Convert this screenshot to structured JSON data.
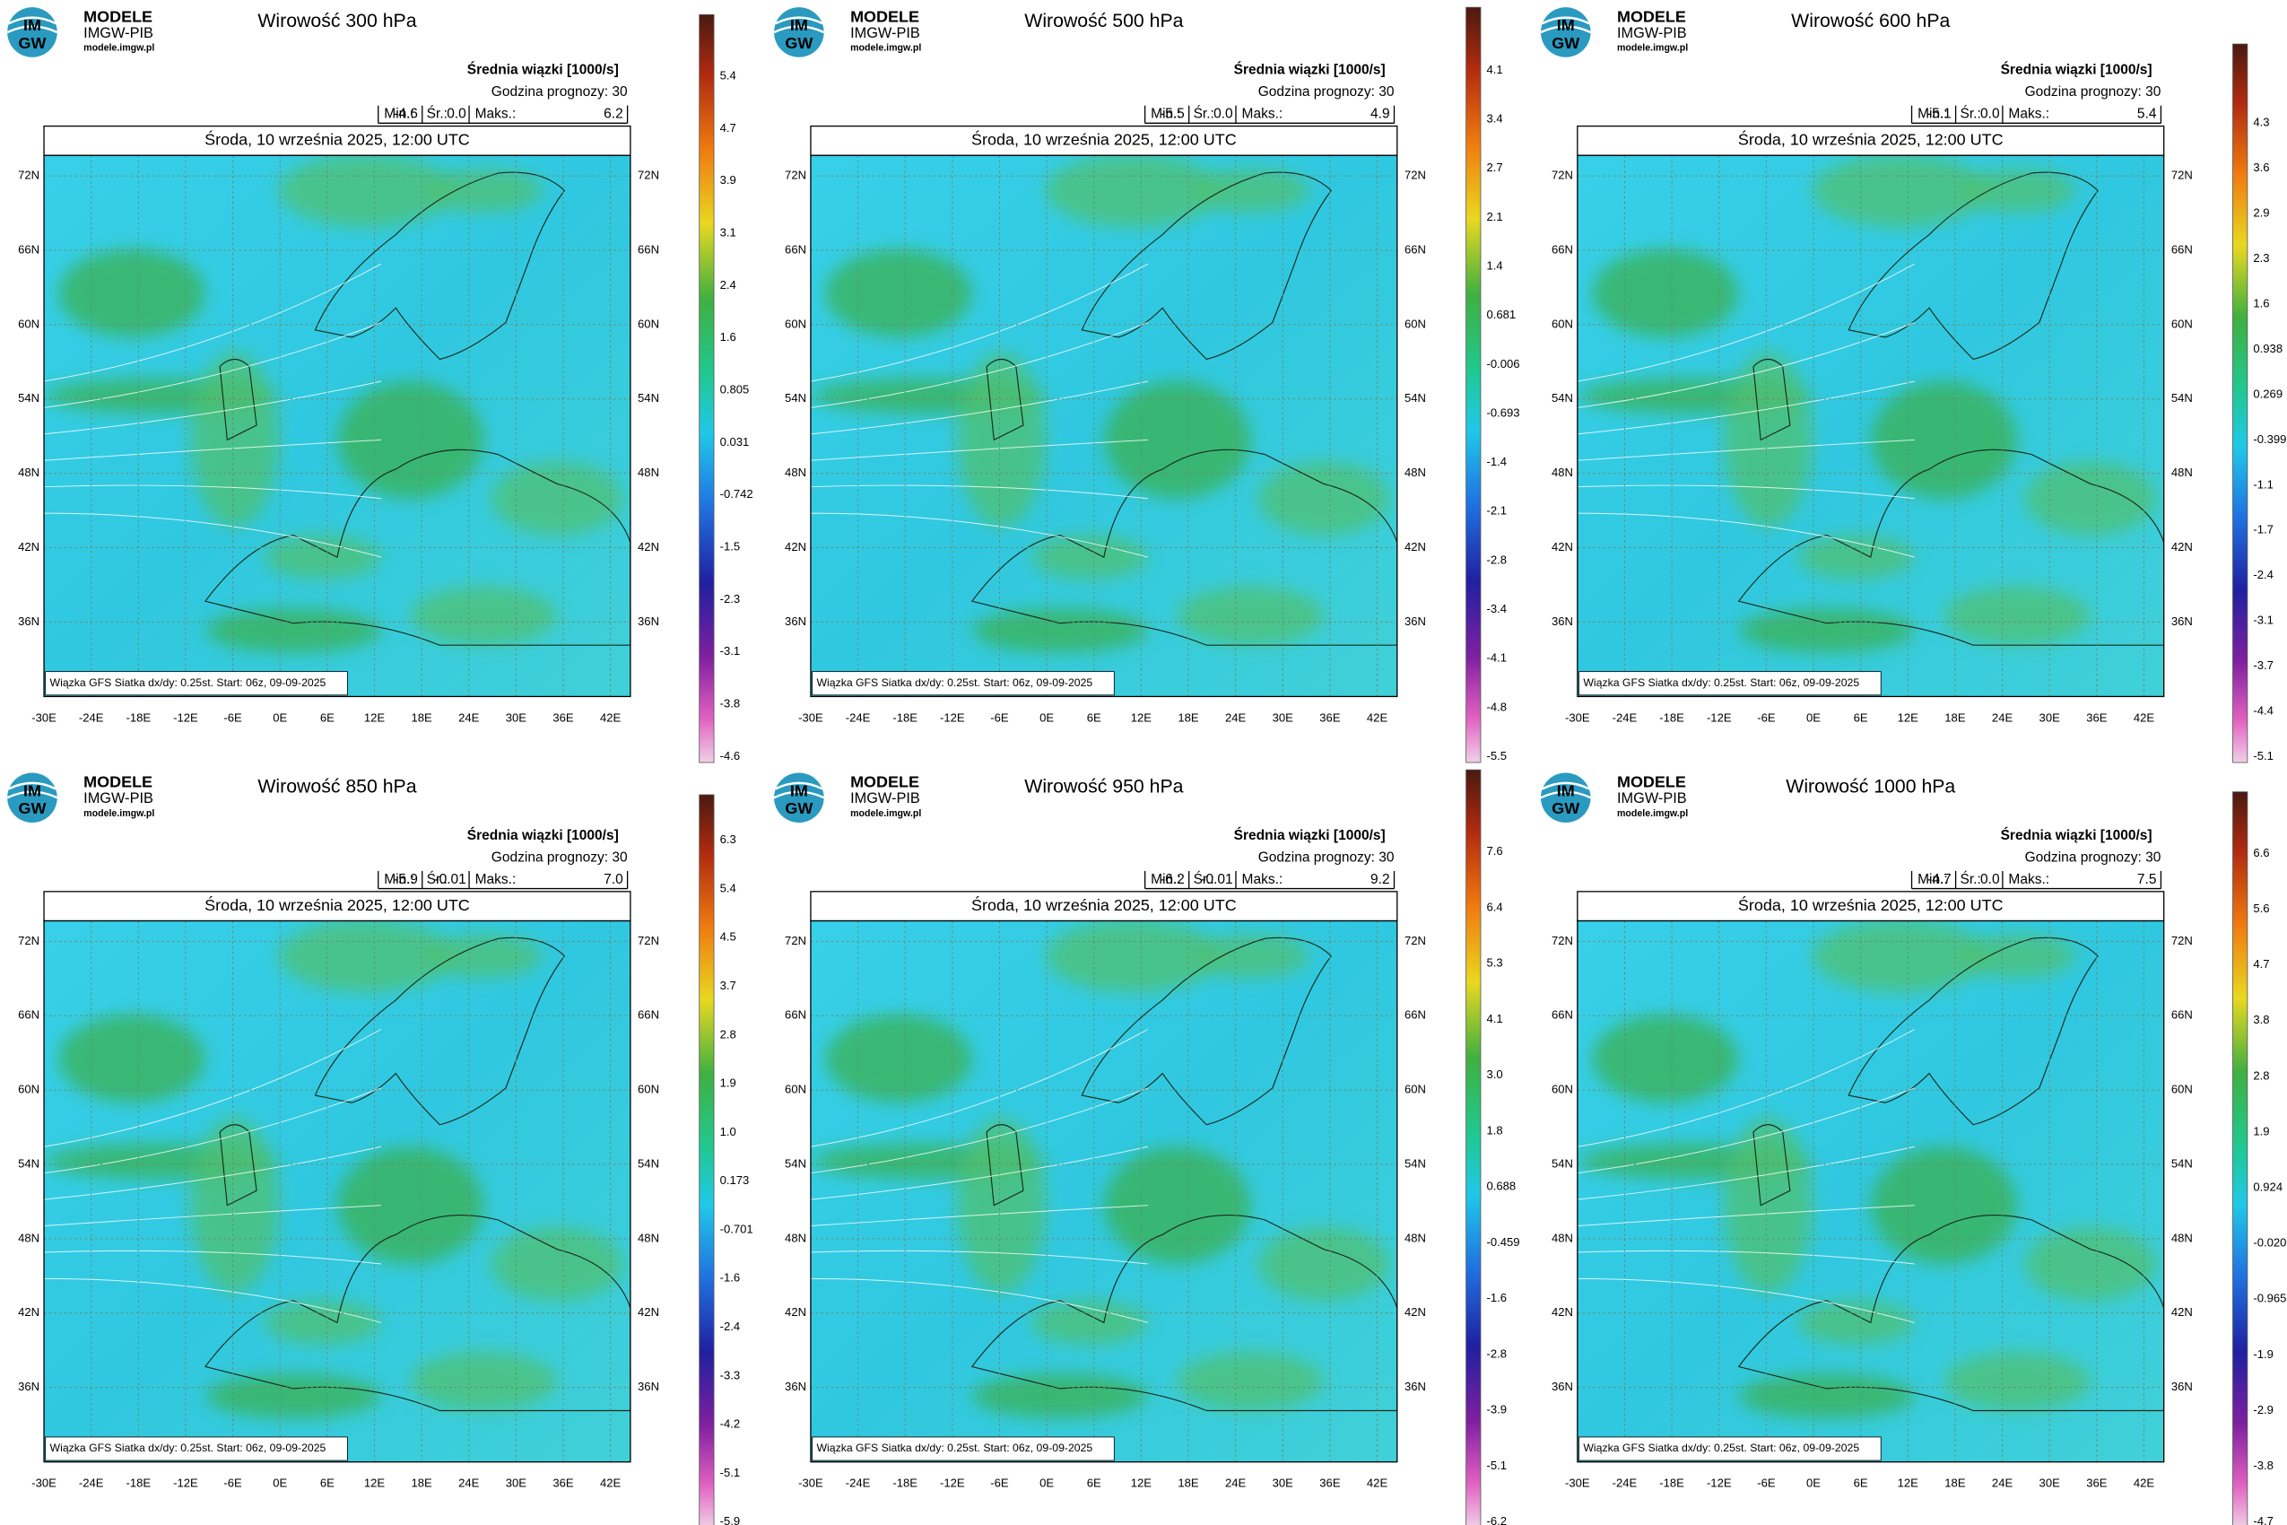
{
  "logo": {
    "mark_top": "IM",
    "mark_bottom": "GW",
    "name": "MODELE",
    "org": "IMGW-PIB",
    "url": "modele.imgw.pl"
  },
  "subtitle": "Średnia wiązki [1000/s]",
  "forecast": "Godzina prognozy: 30",
  "date": "Środa, 10 września 2025, 12:00 UTC",
  "footer": "Wiązka GFS Siatka dx/dy: 0.25st. Start: 06z, 09-09-2025",
  "stat_labels": {
    "min": "Min.:",
    "mean": "Śr.:",
    "max": "Maks.:"
  },
  "lat_labels": [
    "72N",
    "66N",
    "60N",
    "54N",
    "48N",
    "42N",
    "36N"
  ],
  "lon_labels": [
    "-30E",
    "-24E",
    "-18E",
    "-12E",
    "-6E",
    "0E",
    "6E",
    "12E",
    "18E",
    "24E",
    "30E",
    "36E",
    "42E"
  ],
  "panels": [
    {
      "title": "Wirowość 300 hPa",
      "min": "-4.6",
      "mean": "0.0",
      "max": "6.2",
      "colorbar": [
        "5.4",
        "4.7",
        "3.9",
        "3.1",
        "2.4",
        "1.6",
        "0.805",
        "0.031",
        "-0.742",
        "-1.5",
        "-2.3",
        "-3.1",
        "-3.8",
        "-4.6"
      ]
    },
    {
      "title": "Wirowość 500 hPa",
      "min": "-5.5",
      "mean": "0.0",
      "max": "4.9",
      "colorbar": [
        "4.1",
        "3.4",
        "2.7",
        "2.1",
        "1.4",
        "0.681",
        "-0.006",
        "-0.693",
        "-1.4",
        "-2.1",
        "-2.8",
        "-3.4",
        "-4.1",
        "-4.8",
        "-5.5"
      ]
    },
    {
      "title": "Wirowość 600 hPa",
      "min": "-5.1",
      "mean": "0.0",
      "max": "5.4",
      "colorbar": [
        "4.3",
        "3.6",
        "2.9",
        "2.3",
        "1.6",
        "0.938",
        "0.269",
        "-0.399",
        "-1.1",
        "-1.7",
        "-2.4",
        "-3.1",
        "-3.7",
        "-4.4",
        "-5.1"
      ]
    },
    {
      "title": "Wirowość 850 hPa",
      "min": "-5.9",
      "mean": "-0.01",
      "max": "7.0",
      "colorbar": [
        "6.3",
        "5.4",
        "4.5",
        "3.7",
        "2.8",
        "1.9",
        "1.0",
        "0.173",
        "-0.701",
        "-1.6",
        "-2.4",
        "-3.3",
        "-4.2",
        "-5.1",
        "-5.9"
      ]
    },
    {
      "title": "Wirowość 950 hPa",
      "min": "-6.2",
      "mean": "-0.01",
      "max": "9.2",
      "colorbar": [
        "7.6",
        "6.4",
        "5.3",
        "4.1",
        "3.0",
        "1.8",
        "0.688",
        "-0.459",
        "-1.6",
        "-2.8",
        "-3.9",
        "-5.1",
        "-6.2"
      ]
    },
    {
      "title": "Wirowość 1000 hPa",
      "min": "-4.7",
      "mean": "0.0",
      "max": "7.5",
      "colorbar": [
        "6.6",
        "5.6",
        "4.7",
        "3.8",
        "2.8",
        "1.9",
        "0.924",
        "-0.020",
        "-0.965",
        "-1.9",
        "-2.9",
        "-3.8",
        "-4.7"
      ]
    }
  ]
}
